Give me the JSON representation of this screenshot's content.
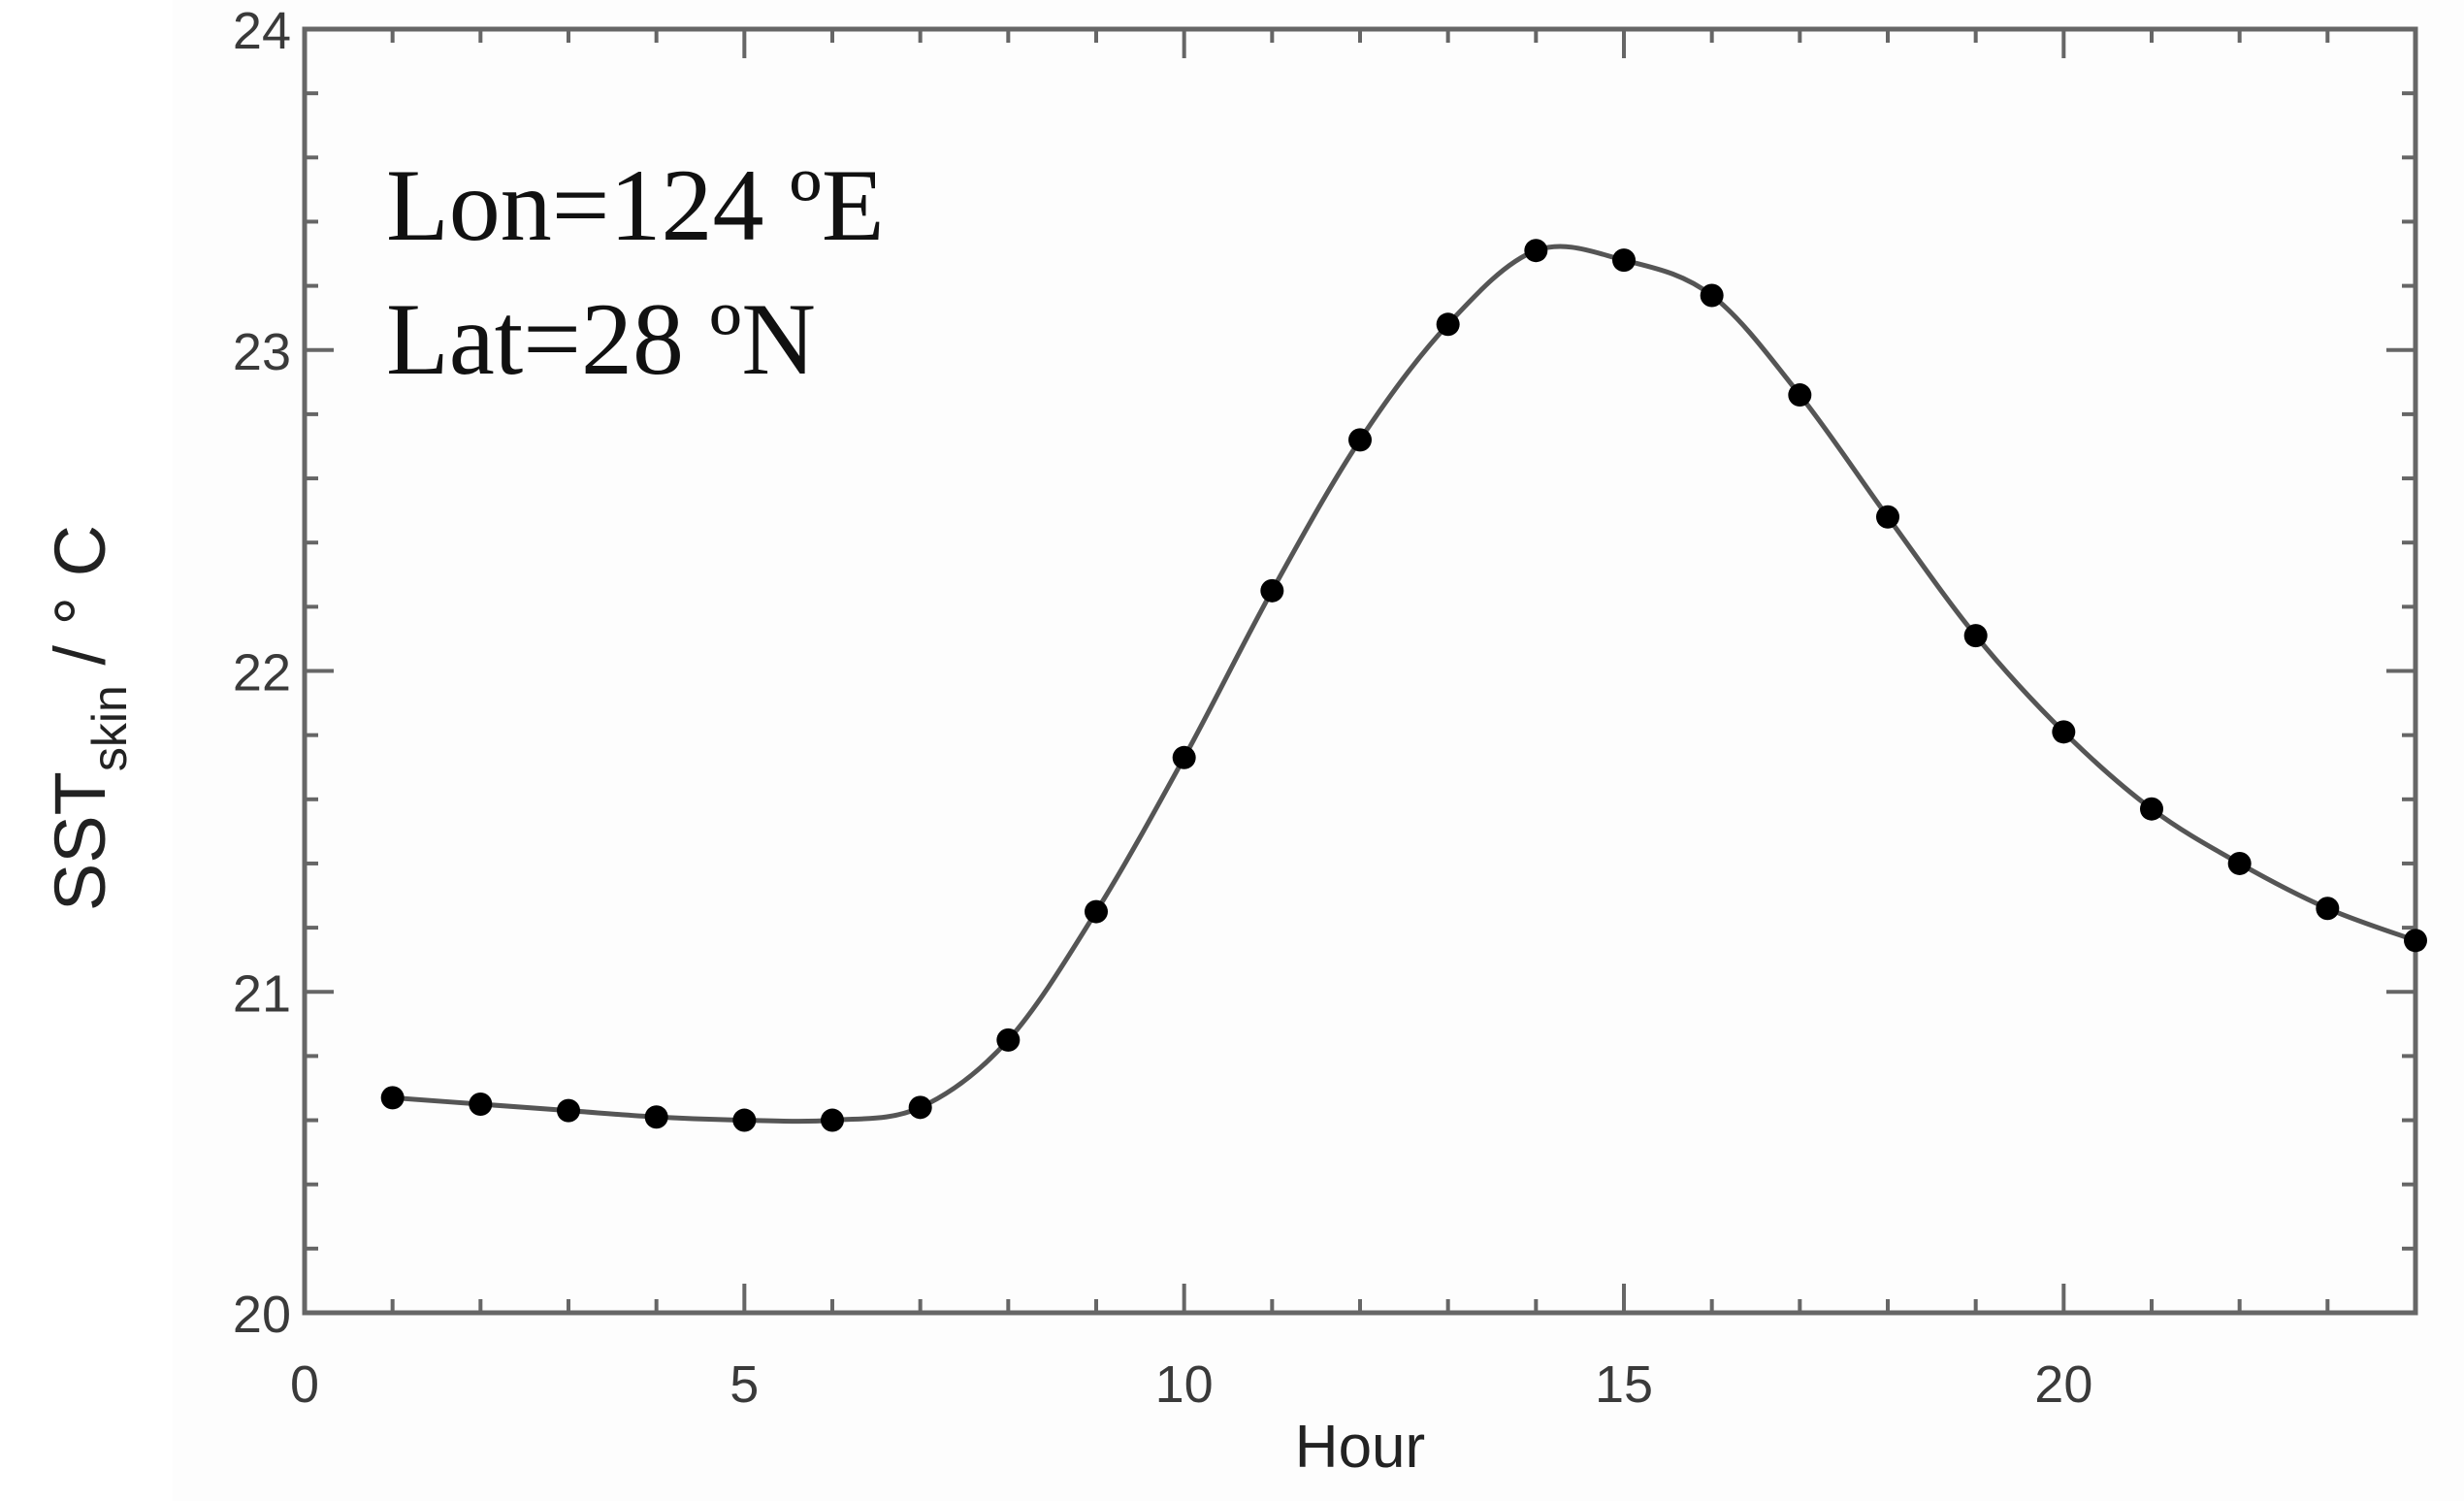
{
  "chart_data": {
    "type": "line",
    "xlabel": "Hour",
    "ylabel_main": "SST",
    "ylabel_sub": "skin",
    "ylabel_unit": " / ° C",
    "xlim": [
      0,
      24
    ],
    "ylim": [
      20,
      24
    ],
    "x_ticks": [
      0,
      5,
      10,
      15,
      20
    ],
    "y_ticks": [
      20,
      21,
      22,
      23,
      24
    ],
    "grid": false,
    "annotations": [
      "Lon=124 ºE",
      "Lat=28 ºN"
    ],
    "series": [
      {
        "x": [
          1,
          2,
          3,
          4,
          5,
          6,
          7,
          8,
          9,
          10,
          11,
          12,
          13,
          14,
          15,
          16,
          17,
          18,
          19,
          20,
          21,
          22,
          23,
          24
        ],
        "y": [
          20.67,
          20.65,
          20.63,
          20.61,
          20.6,
          20.6,
          20.64,
          20.85,
          21.25,
          21.73,
          22.25,
          22.72,
          23.08,
          23.31,
          23.28,
          23.17,
          22.86,
          22.48,
          22.11,
          21.81,
          21.57,
          21.4,
          21.26,
          21.16
        ]
      }
    ],
    "colors": {
      "line": "#555555",
      "marker": "#000000",
      "axis": "#666666"
    }
  }
}
